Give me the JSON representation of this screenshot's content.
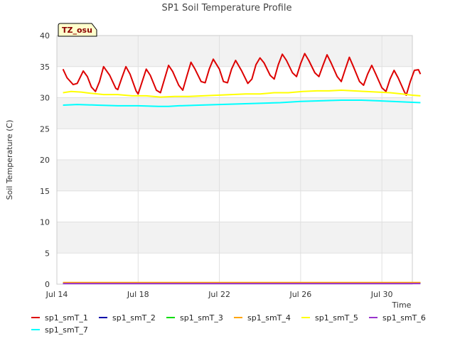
{
  "chart_data": {
    "type": "line",
    "title": "SP1 Soil Temperature Profile",
    "xlabel": "Time",
    "ylabel": "Soil Temperature (C)",
    "annotation": "TZ_osu",
    "xlim_days": [
      14,
      31.5
    ],
    "ylim": [
      0,
      40
    ],
    "y_ticks": [
      0,
      5,
      10,
      15,
      20,
      25,
      30,
      35,
      40
    ],
    "x_ticks": [
      {
        "day": 14,
        "label": "Jul 14"
      },
      {
        "day": 18,
        "label": "Jul 18"
      },
      {
        "day": 22,
        "label": "Jul 22"
      },
      {
        "day": 26,
        "label": "Jul 26"
      },
      {
        "day": 30,
        "label": "Jul 30"
      }
    ],
    "grid": true,
    "legend_position": "bottom",
    "series": [
      {
        "name": "sp1_smT_1",
        "color": "#dd0000",
        "points": [
          [
            14.3,
            34.6
          ],
          [
            14.5,
            33.2
          ],
          [
            14.8,
            32.1
          ],
          [
            15.0,
            32.3
          ],
          [
            15.3,
            34.3
          ],
          [
            15.5,
            33.4
          ],
          [
            15.7,
            31.7
          ],
          [
            15.9,
            31.0
          ],
          [
            16.1,
            32.6
          ],
          [
            16.3,
            35.0
          ],
          [
            16.6,
            33.6
          ],
          [
            16.9,
            31.5
          ],
          [
            17.0,
            31.3
          ],
          [
            17.2,
            33.2
          ],
          [
            17.4,
            35.0
          ],
          [
            17.6,
            33.8
          ],
          [
            17.9,
            31.1
          ],
          [
            18.0,
            30.6
          ],
          [
            18.2,
            32.6
          ],
          [
            18.4,
            34.6
          ],
          [
            18.6,
            33.6
          ],
          [
            18.9,
            31.2
          ],
          [
            19.1,
            30.8
          ],
          [
            19.3,
            33.0
          ],
          [
            19.5,
            35.2
          ],
          [
            19.7,
            34.2
          ],
          [
            20.0,
            32.0
          ],
          [
            20.2,
            31.2
          ],
          [
            20.4,
            33.5
          ],
          [
            20.6,
            35.7
          ],
          [
            20.8,
            34.6
          ],
          [
            21.1,
            32.6
          ],
          [
            21.3,
            32.4
          ],
          [
            21.5,
            34.6
          ],
          [
            21.7,
            36.2
          ],
          [
            22.0,
            34.6
          ],
          [
            22.2,
            32.6
          ],
          [
            22.4,
            32.4
          ],
          [
            22.6,
            34.6
          ],
          [
            22.8,
            36.0
          ],
          [
            23.1,
            34.3
          ],
          [
            23.4,
            32.3
          ],
          [
            23.6,
            33.0
          ],
          [
            23.8,
            35.3
          ],
          [
            24.0,
            36.4
          ],
          [
            24.2,
            35.6
          ],
          [
            24.5,
            33.6
          ],
          [
            24.7,
            33.0
          ],
          [
            24.9,
            35.3
          ],
          [
            25.1,
            37.0
          ],
          [
            25.3,
            36.0
          ],
          [
            25.6,
            34.0
          ],
          [
            25.8,
            33.4
          ],
          [
            26.0,
            35.5
          ],
          [
            26.2,
            37.1
          ],
          [
            26.4,
            36.0
          ],
          [
            26.7,
            34.0
          ],
          [
            26.9,
            33.4
          ],
          [
            27.1,
            35.2
          ],
          [
            27.3,
            36.9
          ],
          [
            27.5,
            35.6
          ],
          [
            27.8,
            33.4
          ],
          [
            28.0,
            32.6
          ],
          [
            28.2,
            34.6
          ],
          [
            28.4,
            36.5
          ],
          [
            28.6,
            35.0
          ],
          [
            28.9,
            32.6
          ],
          [
            29.1,
            32.0
          ],
          [
            29.3,
            33.8
          ],
          [
            29.5,
            35.2
          ],
          [
            29.7,
            33.8
          ],
          [
            30.0,
            31.6
          ],
          [
            30.2,
            31.0
          ],
          [
            30.4,
            33.0
          ],
          [
            30.6,
            34.4
          ],
          [
            30.8,
            33.2
          ],
          [
            31.1,
            31.0
          ],
          [
            31.2,
            30.4
          ],
          [
            31.4,
            32.6
          ],
          [
            31.6,
            34.4
          ],
          [
            31.8,
            34.5
          ],
          [
            31.9,
            33.8
          ]
        ]
      },
      {
        "name": "sp1_smT_2",
        "color": "#0000aa",
        "points": [
          [
            14.3,
            0.15
          ],
          [
            31.9,
            0.15
          ]
        ]
      },
      {
        "name": "sp1_smT_3",
        "color": "#00dd00",
        "points": [
          [
            14.3,
            0.2
          ],
          [
            31.9,
            0.2
          ]
        ]
      },
      {
        "name": "sp1_smT_4",
        "color": "#ffa500",
        "points": [
          [
            14.3,
            0.25
          ],
          [
            31.9,
            0.25
          ]
        ]
      },
      {
        "name": "sp1_smT_5",
        "color": "#ffff00",
        "points": [
          [
            14.3,
            30.8
          ],
          [
            14.7,
            31.0
          ],
          [
            15.2,
            30.9
          ],
          [
            15.7,
            30.7
          ],
          [
            16.3,
            30.5
          ],
          [
            17.0,
            30.5
          ],
          [
            17.7,
            30.3
          ],
          [
            18.4,
            30.3
          ],
          [
            19.1,
            30.1
          ],
          [
            19.8,
            30.2
          ],
          [
            20.5,
            30.2
          ],
          [
            21.2,
            30.3
          ],
          [
            21.9,
            30.4
          ],
          [
            22.6,
            30.5
          ],
          [
            23.3,
            30.6
          ],
          [
            24.0,
            30.6
          ],
          [
            24.7,
            30.8
          ],
          [
            25.4,
            30.8
          ],
          [
            26.1,
            31.0
          ],
          [
            26.8,
            31.1
          ],
          [
            27.4,
            31.1
          ],
          [
            28.0,
            31.2
          ],
          [
            28.6,
            31.1
          ],
          [
            29.2,
            31.0
          ],
          [
            29.8,
            30.9
          ],
          [
            30.4,
            30.8
          ],
          [
            31.0,
            30.6
          ],
          [
            31.5,
            30.4
          ],
          [
            31.9,
            30.3
          ]
        ]
      },
      {
        "name": "sp1_smT_6",
        "color": "#9933cc",
        "points": [
          [
            14.3,
            0.1
          ],
          [
            31.9,
            0.1
          ]
        ]
      },
      {
        "name": "sp1_smT_7",
        "color": "#00ffff",
        "points": [
          [
            14.3,
            28.8
          ],
          [
            15.0,
            28.9
          ],
          [
            16.0,
            28.8
          ],
          [
            17.0,
            28.7
          ],
          [
            18.0,
            28.7
          ],
          [
            19.0,
            28.6
          ],
          [
            19.5,
            28.6
          ],
          [
            20.0,
            28.7
          ],
          [
            21.0,
            28.8
          ],
          [
            22.0,
            28.9
          ],
          [
            23.0,
            29.0
          ],
          [
            24.0,
            29.1
          ],
          [
            25.0,
            29.2
          ],
          [
            26.0,
            29.4
          ],
          [
            27.0,
            29.5
          ],
          [
            28.0,
            29.6
          ],
          [
            29.0,
            29.6
          ],
          [
            29.8,
            29.5
          ],
          [
            30.5,
            29.4
          ],
          [
            31.2,
            29.3
          ],
          [
            31.9,
            29.2
          ]
        ]
      }
    ]
  }
}
